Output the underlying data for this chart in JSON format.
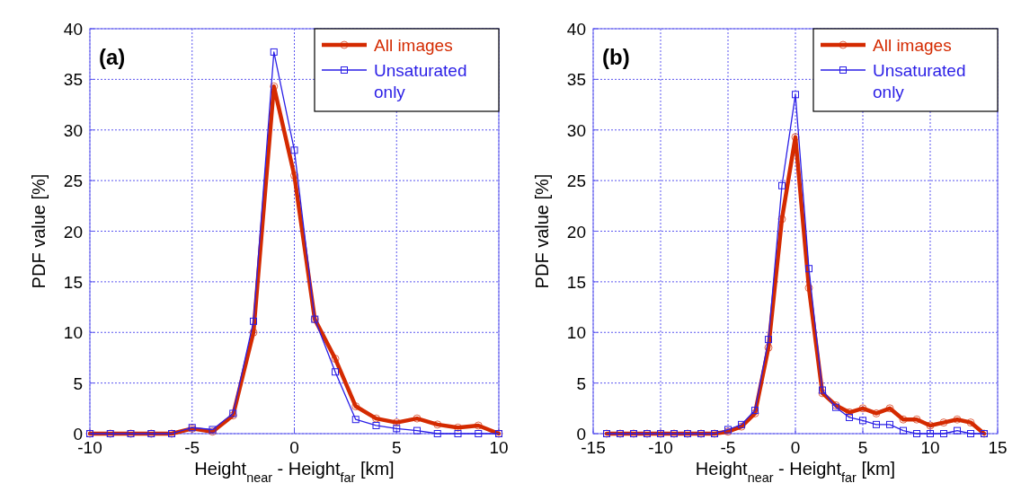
{
  "chart_data": [
    {
      "type": "line",
      "title": "(a)",
      "xlabel": "Height$_{near}$ - Height$_{far}$ [km]",
      "ylabel": "PDF value [%]",
      "x": [
        -10,
        -9,
        -8,
        -7,
        -6,
        -5,
        -4,
        -3,
        -2,
        -1,
        0,
        1,
        2,
        3,
        4,
        5,
        6,
        7,
        8,
        9,
        10
      ],
      "series": [
        {
          "name": "All images",
          "color": "#d42a00",
          "marker": "circle",
          "values": [
            0,
            0,
            0,
            0,
            0,
            0.5,
            0.2,
            1.8,
            10,
            34.3,
            25.5,
            11.3,
            7.4,
            2.7,
            1.5,
            1.1,
            1.5,
            0.9,
            0.6,
            0.8,
            0
          ]
        },
        {
          "name": "Unsaturated only",
          "color": "#2a1ee6",
          "marker": "square",
          "values": [
            0,
            0,
            0,
            0,
            0,
            0.6,
            0.4,
            2,
            11.1,
            37.7,
            28,
            11.3,
            6.1,
            1.4,
            0.8,
            0.5,
            0.3,
            0,
            0,
            0,
            0
          ]
        }
      ],
      "xlim": [
        -10,
        10
      ],
      "xticks": [
        -10,
        -5,
        0,
        5,
        10
      ],
      "ylim": [
        0,
        40
      ],
      "yticks": [
        0,
        5,
        10,
        15,
        20,
        25,
        30,
        35,
        40
      ],
      "grid": true,
      "legend": "top right"
    },
    {
      "type": "line",
      "title": "(b)",
      "xlabel": "Height$_{near}$ - Height$_{far}$ [km]",
      "ylabel": "PDF value [%]",
      "x": [
        -14,
        -13,
        -12,
        -11,
        -10,
        -9,
        -8,
        -7,
        -6,
        -5,
        -4,
        -3,
        -2,
        -1,
        0,
        1,
        2,
        3,
        4,
        5,
        6,
        7,
        8,
        9,
        10,
        11,
        12,
        13,
        14
      ],
      "series": [
        {
          "name": "All images",
          "color": "#d42a00",
          "marker": "circle",
          "values": [
            0,
            0,
            0,
            0,
            0,
            0,
            0,
            0,
            0,
            0.2,
            0.7,
            2,
            8.5,
            21.2,
            29.3,
            14.4,
            4,
            2.8,
            2.1,
            2.5,
            2,
            2.5,
            1.4,
            1.4,
            0.8,
            1.1,
            1.4,
            1.1,
            0
          ]
        },
        {
          "name": "Unsaturated only",
          "color": "#2a1ee6",
          "marker": "square",
          "values": [
            0,
            0,
            0,
            0,
            0,
            0,
            0,
            0,
            0,
            0.4,
            0.9,
            2.3,
            9.3,
            24.5,
            33.5,
            16.3,
            4.3,
            2.6,
            1.6,
            1.3,
            0.9,
            0.9,
            0.3,
            0,
            0,
            0,
            0.3,
            0,
            0
          ]
        }
      ],
      "xlim": [
        -15,
        15
      ],
      "xticks": [
        -15,
        -10,
        -5,
        0,
        5,
        10,
        15
      ],
      "ylim": [
        0,
        40
      ],
      "yticks": [
        0,
        5,
        10,
        15,
        20,
        25,
        30,
        35,
        40
      ],
      "grid": true,
      "legend": "top right"
    }
  ]
}
